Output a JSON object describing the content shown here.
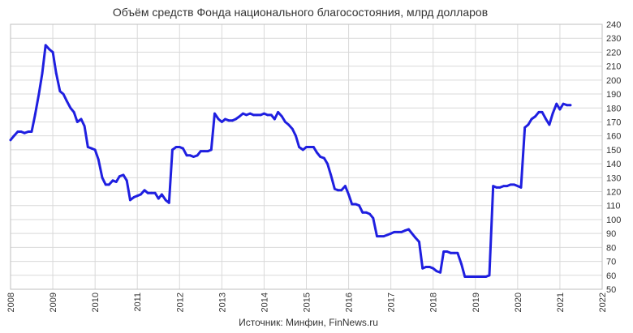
{
  "chart_data": {
    "type": "line",
    "title": "Объём средств Фонда национального благосостояния, млрд долларов",
    "source": "Источник: Минфин, FinNews.ru",
    "x_ticks": [
      "2008",
      "2009",
      "2010",
      "2011",
      "2012",
      "2013",
      "2014",
      "2015",
      "2016",
      "2017",
      "2018",
      "2019",
      "2020",
      "2021",
      "2022"
    ],
    "y_ticks": [
      50,
      60,
      70,
      80,
      90,
      100,
      110,
      120,
      130,
      140,
      150,
      160,
      170,
      180,
      190,
      200,
      210,
      220,
      230,
      240
    ],
    "xlim": [
      2008,
      2022
    ],
    "ylim": [
      50,
      240
    ],
    "y_axis_side": "right",
    "grid": "both",
    "line_color": "#1f1fe0",
    "series": [
      {
        "x": [
          2008.0,
          2008.08,
          2008.17,
          2008.25,
          2008.33,
          2008.42,
          2008.5,
          2008.58,
          2008.67,
          2008.75,
          2008.83,
          2008.92,
          2009.0,
          2009.08,
          2009.17,
          2009.25,
          2009.33,
          2009.42,
          2009.5,
          2009.58,
          2009.67,
          2009.75,
          2009.83,
          2009.92,
          2010.0,
          2010.08,
          2010.17,
          2010.25,
          2010.33,
          2010.42,
          2010.5,
          2010.58,
          2010.67,
          2010.75,
          2010.83,
          2010.92,
          2011.0,
          2011.08,
          2011.17,
          2011.25,
          2011.33,
          2011.42,
          2011.5,
          2011.58,
          2011.67,
          2011.75,
          2011.83,
          2011.92,
          2012.0,
          2012.08,
          2012.17,
          2012.25,
          2012.33,
          2012.42,
          2012.5,
          2012.58,
          2012.67,
          2012.75,
          2012.83,
          2012.92,
          2013.0,
          2013.08,
          2013.17,
          2013.25,
          2013.33,
          2013.42,
          2013.5,
          2013.58,
          2013.67,
          2013.75,
          2013.83,
          2013.92,
          2014.0,
          2014.08,
          2014.17,
          2014.25,
          2014.33,
          2014.42,
          2014.5,
          2014.58,
          2014.67,
          2014.75,
          2014.83,
          2014.92,
          2015.0,
          2015.08,
          2015.17,
          2015.25,
          2015.33,
          2015.42,
          2015.5,
          2015.58,
          2015.67,
          2015.75,
          2015.83,
          2015.92,
          2016.0,
          2016.08,
          2016.17,
          2016.25,
          2016.33,
          2016.42,
          2016.5,
          2016.58,
          2016.67,
          2016.75,
          2016.83,
          2016.92,
          2017.0,
          2017.08,
          2017.17,
          2017.25,
          2017.33,
          2017.42,
          2017.5,
          2017.58,
          2017.67,
          2017.75,
          2017.83,
          2017.92,
          2018.0,
          2018.08,
          2018.17,
          2018.25,
          2018.33,
          2018.42,
          2018.5,
          2018.58,
          2018.67,
          2018.75,
          2018.83,
          2018.92,
          2019.0,
          2019.08,
          2019.17,
          2019.25,
          2019.33,
          2019.42,
          2019.5,
          2019.58,
          2019.67,
          2019.75,
          2019.83,
          2019.92,
          2020.0,
          2020.08,
          2020.17,
          2020.25,
          2020.33,
          2020.42,
          2020.5,
          2020.58,
          2020.67,
          2020.75,
          2020.83,
          2020.92,
          2021.0,
          2021.08,
          2021.17,
          2021.25
        ],
        "y": [
          157,
          160,
          163,
          163,
          162,
          163,
          163,
          175,
          190,
          205,
          225,
          222,
          220,
          205,
          192,
          190,
          185,
          180,
          177,
          170,
          172,
          167,
          152,
          151,
          150,
          143,
          130,
          125,
          125,
          128,
          127,
          131,
          132,
          128,
          114,
          116,
          117,
          118,
          121,
          119,
          119,
          119,
          115,
          118,
          114,
          112,
          150,
          152,
          152,
          151,
          146,
          146,
          145,
          146,
          149,
          149,
          149,
          150,
          176,
          172,
          170,
          172,
          171,
          171,
          172,
          174,
          176,
          175,
          176,
          175,
          175,
          175,
          176,
          175,
          175,
          172,
          177,
          174,
          170,
          168,
          165,
          160,
          152,
          150,
          152,
          152,
          152,
          148,
          145,
          144,
          140,
          132,
          122,
          121,
          121,
          124,
          118,
          111,
          111,
          110,
          105,
          105,
          104,
          101,
          88,
          88,
          88,
          89,
          90,
          91,
          91,
          91,
          92,
          93,
          90,
          87,
          84,
          65,
          66,
          66,
          65,
          63,
          62,
          77,
          77,
          76,
          76,
          76,
          68,
          59,
          59,
          59,
          59,
          59,
          59,
          59,
          60,
          124,
          123,
          123,
          124,
          124,
          125,
          125,
          124,
          123,
          166,
          168,
          172,
          174,
          177,
          177,
          172,
          168,
          176,
          183,
          179,
          183,
          182,
          182
        ]
      }
    ]
  }
}
